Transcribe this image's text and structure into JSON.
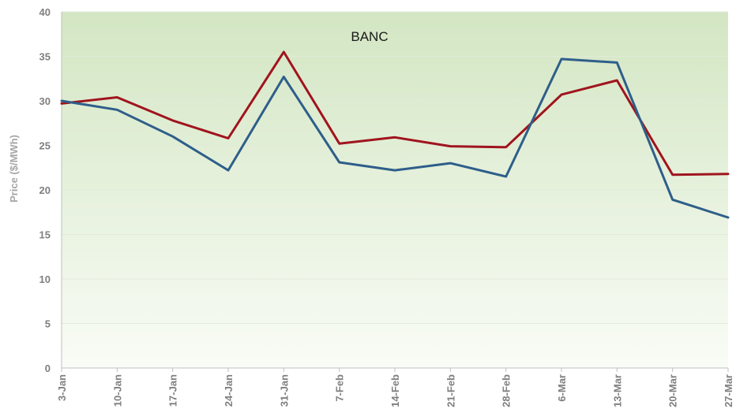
{
  "chart_data": {
    "type": "line",
    "title": "BANC",
    "xlabel": "",
    "ylabel": "Price ($/MWh)",
    "categories": [
      "3-Jan",
      "10-Jan",
      "17-Jan",
      "24-Jan",
      "31-Jan",
      "7-Feb",
      "14-Feb",
      "21-Feb",
      "28-Feb",
      "6-Mar",
      "13-Mar",
      "20-Mar",
      "27-Mar"
    ],
    "yticks": [
      "0",
      "5",
      "10",
      "15",
      "20",
      "25",
      "30",
      "35",
      "40"
    ],
    "ylim": [
      0,
      40
    ],
    "grid": true,
    "legend": "none",
    "series": [
      {
        "color": "#a0141e",
        "values": [
          29.7,
          30.4,
          27.8,
          25.8,
          35.5,
          25.2,
          25.9,
          24.9,
          24.8,
          30.7,
          32.3,
          21.7,
          21.8
        ]
      },
      {
        "color": "#2e5e8a",
        "values": [
          30.0,
          29.0,
          26.0,
          22.2,
          32.7,
          23.1,
          22.2,
          23.0,
          21.5,
          34.7,
          34.3,
          18.9,
          16.9
        ]
      }
    ]
  },
  "colors": {
    "plot_bg_top": "#d3e6c3",
    "plot_bg_bottom": "#f9fcf6",
    "gridline": "#e1ead8",
    "axis_line": "#bfbfbf"
  }
}
